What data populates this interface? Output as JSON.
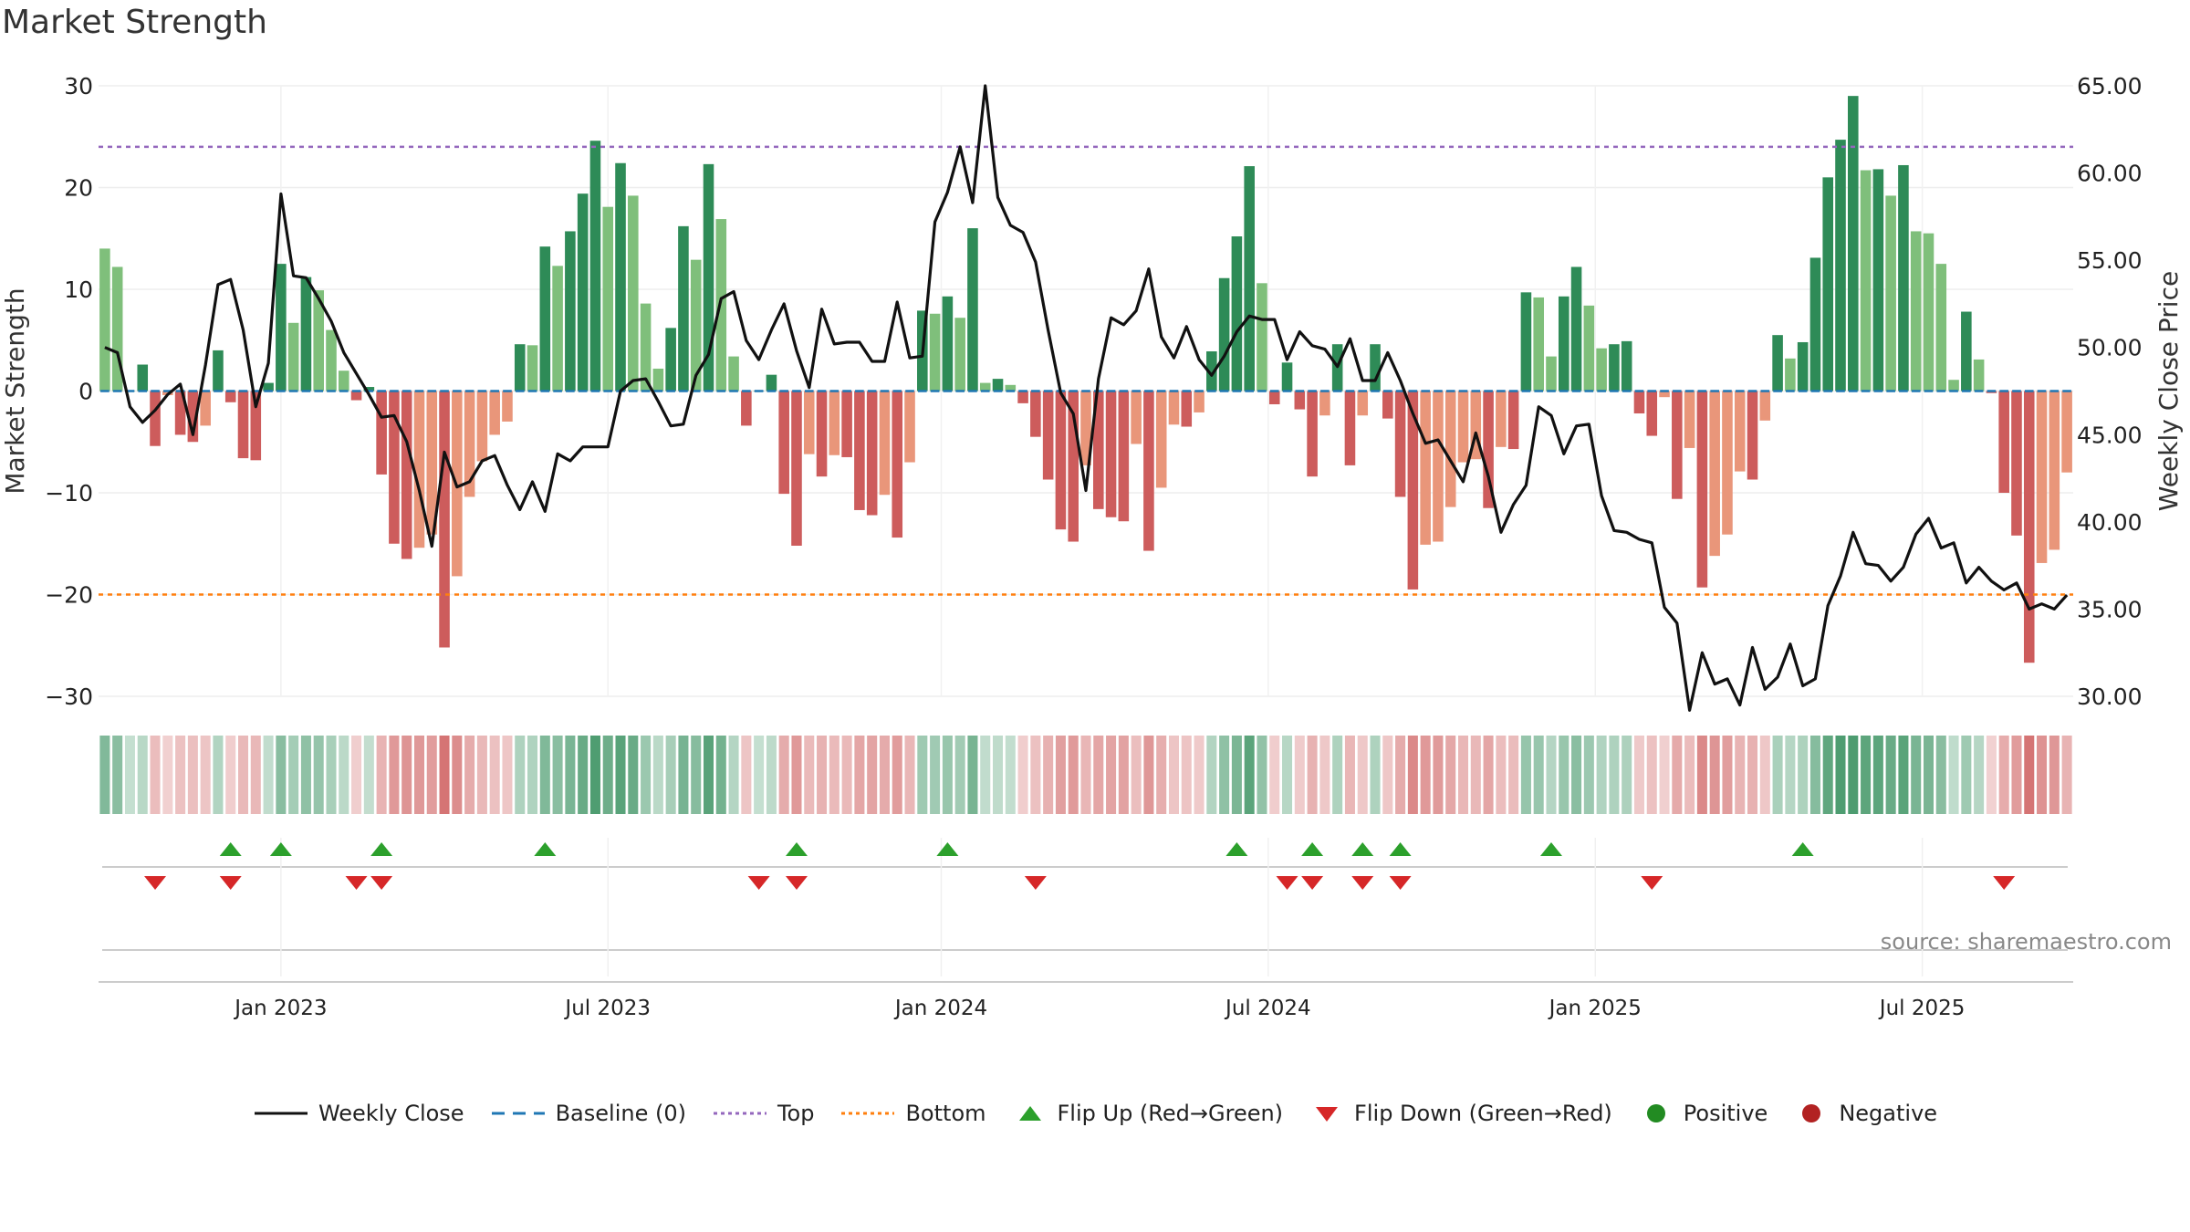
{
  "title": "Market Strength",
  "source": "source: sharemaestro.com",
  "colors": {
    "positive_strong": "#2e8b57",
    "positive_light": "#7fbf7b",
    "negative_strong": "#cd5c5c",
    "negative_light": "#e9967a",
    "line": "#111111",
    "baseline": "#1f77b4",
    "top": "#9467bd",
    "bottom": "#ff7f0e",
    "flip_up": "#2ca02c",
    "flip_down": "#d62728",
    "pos_dot": "#228b22",
    "neg_dot": "#b22222"
  },
  "chart_data": {
    "type": "bar",
    "ylabel_left": "Market Strength",
    "ylabel_right": "Weekly Close Price",
    "ylim_left": [
      -30,
      30
    ],
    "yticks_left": [
      30,
      20,
      10,
      0,
      -10,
      -20,
      -30
    ],
    "ytick_labels_left": [
      "30",
      "20",
      "10",
      "0",
      "−10",
      "−20",
      "−30"
    ],
    "ylim_right": [
      30,
      65
    ],
    "yticks_right": [
      65,
      60,
      55,
      50,
      45,
      40,
      35,
      30
    ],
    "ytick_labels_right": [
      "65.00",
      "60.00",
      "55.00",
      "50.00",
      "45.00",
      "40.00",
      "35.00",
      "30.00"
    ],
    "xtick_labels": [
      "Jan 2023",
      "Jul 2023",
      "Jan 2024",
      "Jul 2024",
      "Jan 2025",
      "Jul 2025"
    ],
    "xtick_weeks": [
      14,
      40,
      66.5,
      92.5,
      118.5,
      144.5
    ],
    "top_level": 24,
    "bottom_level": -20,
    "strength": [
      14,
      12.2,
      0,
      2.6,
      -5.4,
      -0.4,
      -4.3,
      -5,
      -3.4,
      4,
      -1.1,
      -6.6,
      -6.8,
      0.8,
      12.5,
      6.7,
      11.2,
      9.9,
      6,
      2,
      -0.9,
      0.4,
      -8.2,
      -15,
      -16.5,
      -15.4,
      -14.1,
      -25.2,
      -18.2,
      -10.4,
      -6.9,
      -4.3,
      -3,
      4.6,
      4.5,
      14.2,
      12.3,
      15.7,
      19.4,
      24.6,
      18.1,
      22.4,
      19.2,
      8.6,
      2.2,
      6.2,
      16.2,
      12.9,
      22.3,
      16.9,
      3.4,
      -3.4,
      0,
      1.6,
      -10.1,
      -15.2,
      -6.2,
      -8.4,
      -6.3,
      -6.5,
      -11.7,
      -12.2,
      -10.2,
      -14.4,
      -7,
      7.9,
      7.6,
      9.3,
      7.2,
      16,
      0.8,
      1.2,
      0.6,
      -1.2,
      -4.5,
      -8.7,
      -13.6,
      -14.8,
      -7.3,
      -11.6,
      -12.4,
      -12.8,
      -5.2,
      -15.7,
      -9.5,
      -3.3,
      -3.5,
      -2.1,
      3.9,
      11.1,
      15.2,
      22.1,
      10.6,
      -1.3,
      2.8,
      -1.8,
      -8.4,
      -2.4,
      4.6,
      -7.3,
      -2.4,
      4.6,
      -2.7,
      -10.4,
      -19.5,
      -15.1,
      -14.8,
      -11.4,
      -7,
      -6.7,
      -11.5,
      -5.5,
      -5.7,
      9.7,
      9.2,
      3.4,
      9.3,
      12.2,
      8.4,
      4.2,
      4.6,
      4.9,
      -2.2,
      -4.4,
      -0.6,
      -10.6,
      -5.6,
      -19.3,
      -16.2,
      -14.1,
      -7.9,
      -8.7,
      -2.9,
      5.5,
      3.2,
      4.8,
      13.1,
      21,
      24.7,
      29,
      21.7,
      21.8,
      19.2,
      22.2,
      15.7,
      15.5,
      12.5,
      1.1,
      7.8,
      3.1,
      -0.2,
      -10,
      -14.2,
      -26.7,
      -16.9,
      -15.6,
      -8
    ],
    "weekly_close": [
      50,
      49.7,
      46.6,
      45.7,
      46.4,
      47.3,
      47.9,
      45,
      49,
      53.6,
      53.9,
      51,
      46.6,
      49.1,
      58.8,
      54.1,
      54,
      52.8,
      51.5,
      49.7,
      48.5,
      47.3,
      46,
      46.1,
      44.6,
      41.8,
      38.6,
      44,
      42,
      42.3,
      43.5,
      43.8,
      42.1,
      40.7,
      42.3,
      40.6,
      43.9,
      43.5,
      44.3,
      44.3,
      44.3,
      47.5,
      48.1,
      48.2,
      46.9,
      45.5,
      45.6,
      48.4,
      49.6,
      52.8,
      53.2,
      50.4,
      49.3,
      51,
      52.5,
      49.8,
      47.7,
      52.2,
      50.2,
      50.3,
      50.3,
      49.2,
      49.2,
      52.6,
      49.4,
      49.5,
      57.2,
      58.9,
      61.5,
      58.3,
      65,
      58.6,
      57,
      56.6,
      54.9,
      51,
      47.4,
      46.2,
      41.8,
      48.2,
      51.7,
      51.3,
      52.1,
      54.5,
      50.6,
      49.4,
      51.2,
      49.3,
      48.4,
      49.5,
      50.9,
      51.8,
      51.6,
      51.6,
      49.3,
      50.9,
      50.1,
      49.9,
      48.9,
      50.5,
      48.1,
      48.1,
      49.7,
      48.1,
      46.2,
      44.5,
      44.7,
      43.5,
      42.3,
      45.1,
      42.6,
      39.4,
      41,
      42.1,
      46.6,
      46.1,
      43.9,
      45.5,
      45.6,
      41.5,
      39.5,
      39.4,
      39,
      38.8,
      35.1,
      34.2,
      29.2,
      32.5,
      30.7,
      31,
      29.5,
      32.8,
      30.4,
      31.1,
      33,
      30.6,
      31,
      35.2,
      36.9,
      39.4,
      37.6,
      37.5,
      36.6,
      37.4,
      39.3,
      40.2,
      38.5,
      38.8,
      36.5,
      37.4,
      36.6,
      36.1,
      36.5,
      35,
      35.3,
      35,
      35.8
    ],
    "flip_up_weeks": [
      10,
      14,
      22,
      35,
      55,
      67,
      90,
      96,
      100,
      103,
      115,
      135
    ],
    "flip_down_weeks": [
      4,
      10,
      20,
      22,
      52,
      55,
      74,
      94,
      96,
      100,
      103,
      123,
      151
    ],
    "legend": [
      "Weekly Close",
      "Baseline (0)",
      "Top",
      "Bottom",
      "Flip Up (Red→Green)",
      "Flip Down (Green→Red)",
      "Positive",
      "Negative"
    ]
  }
}
